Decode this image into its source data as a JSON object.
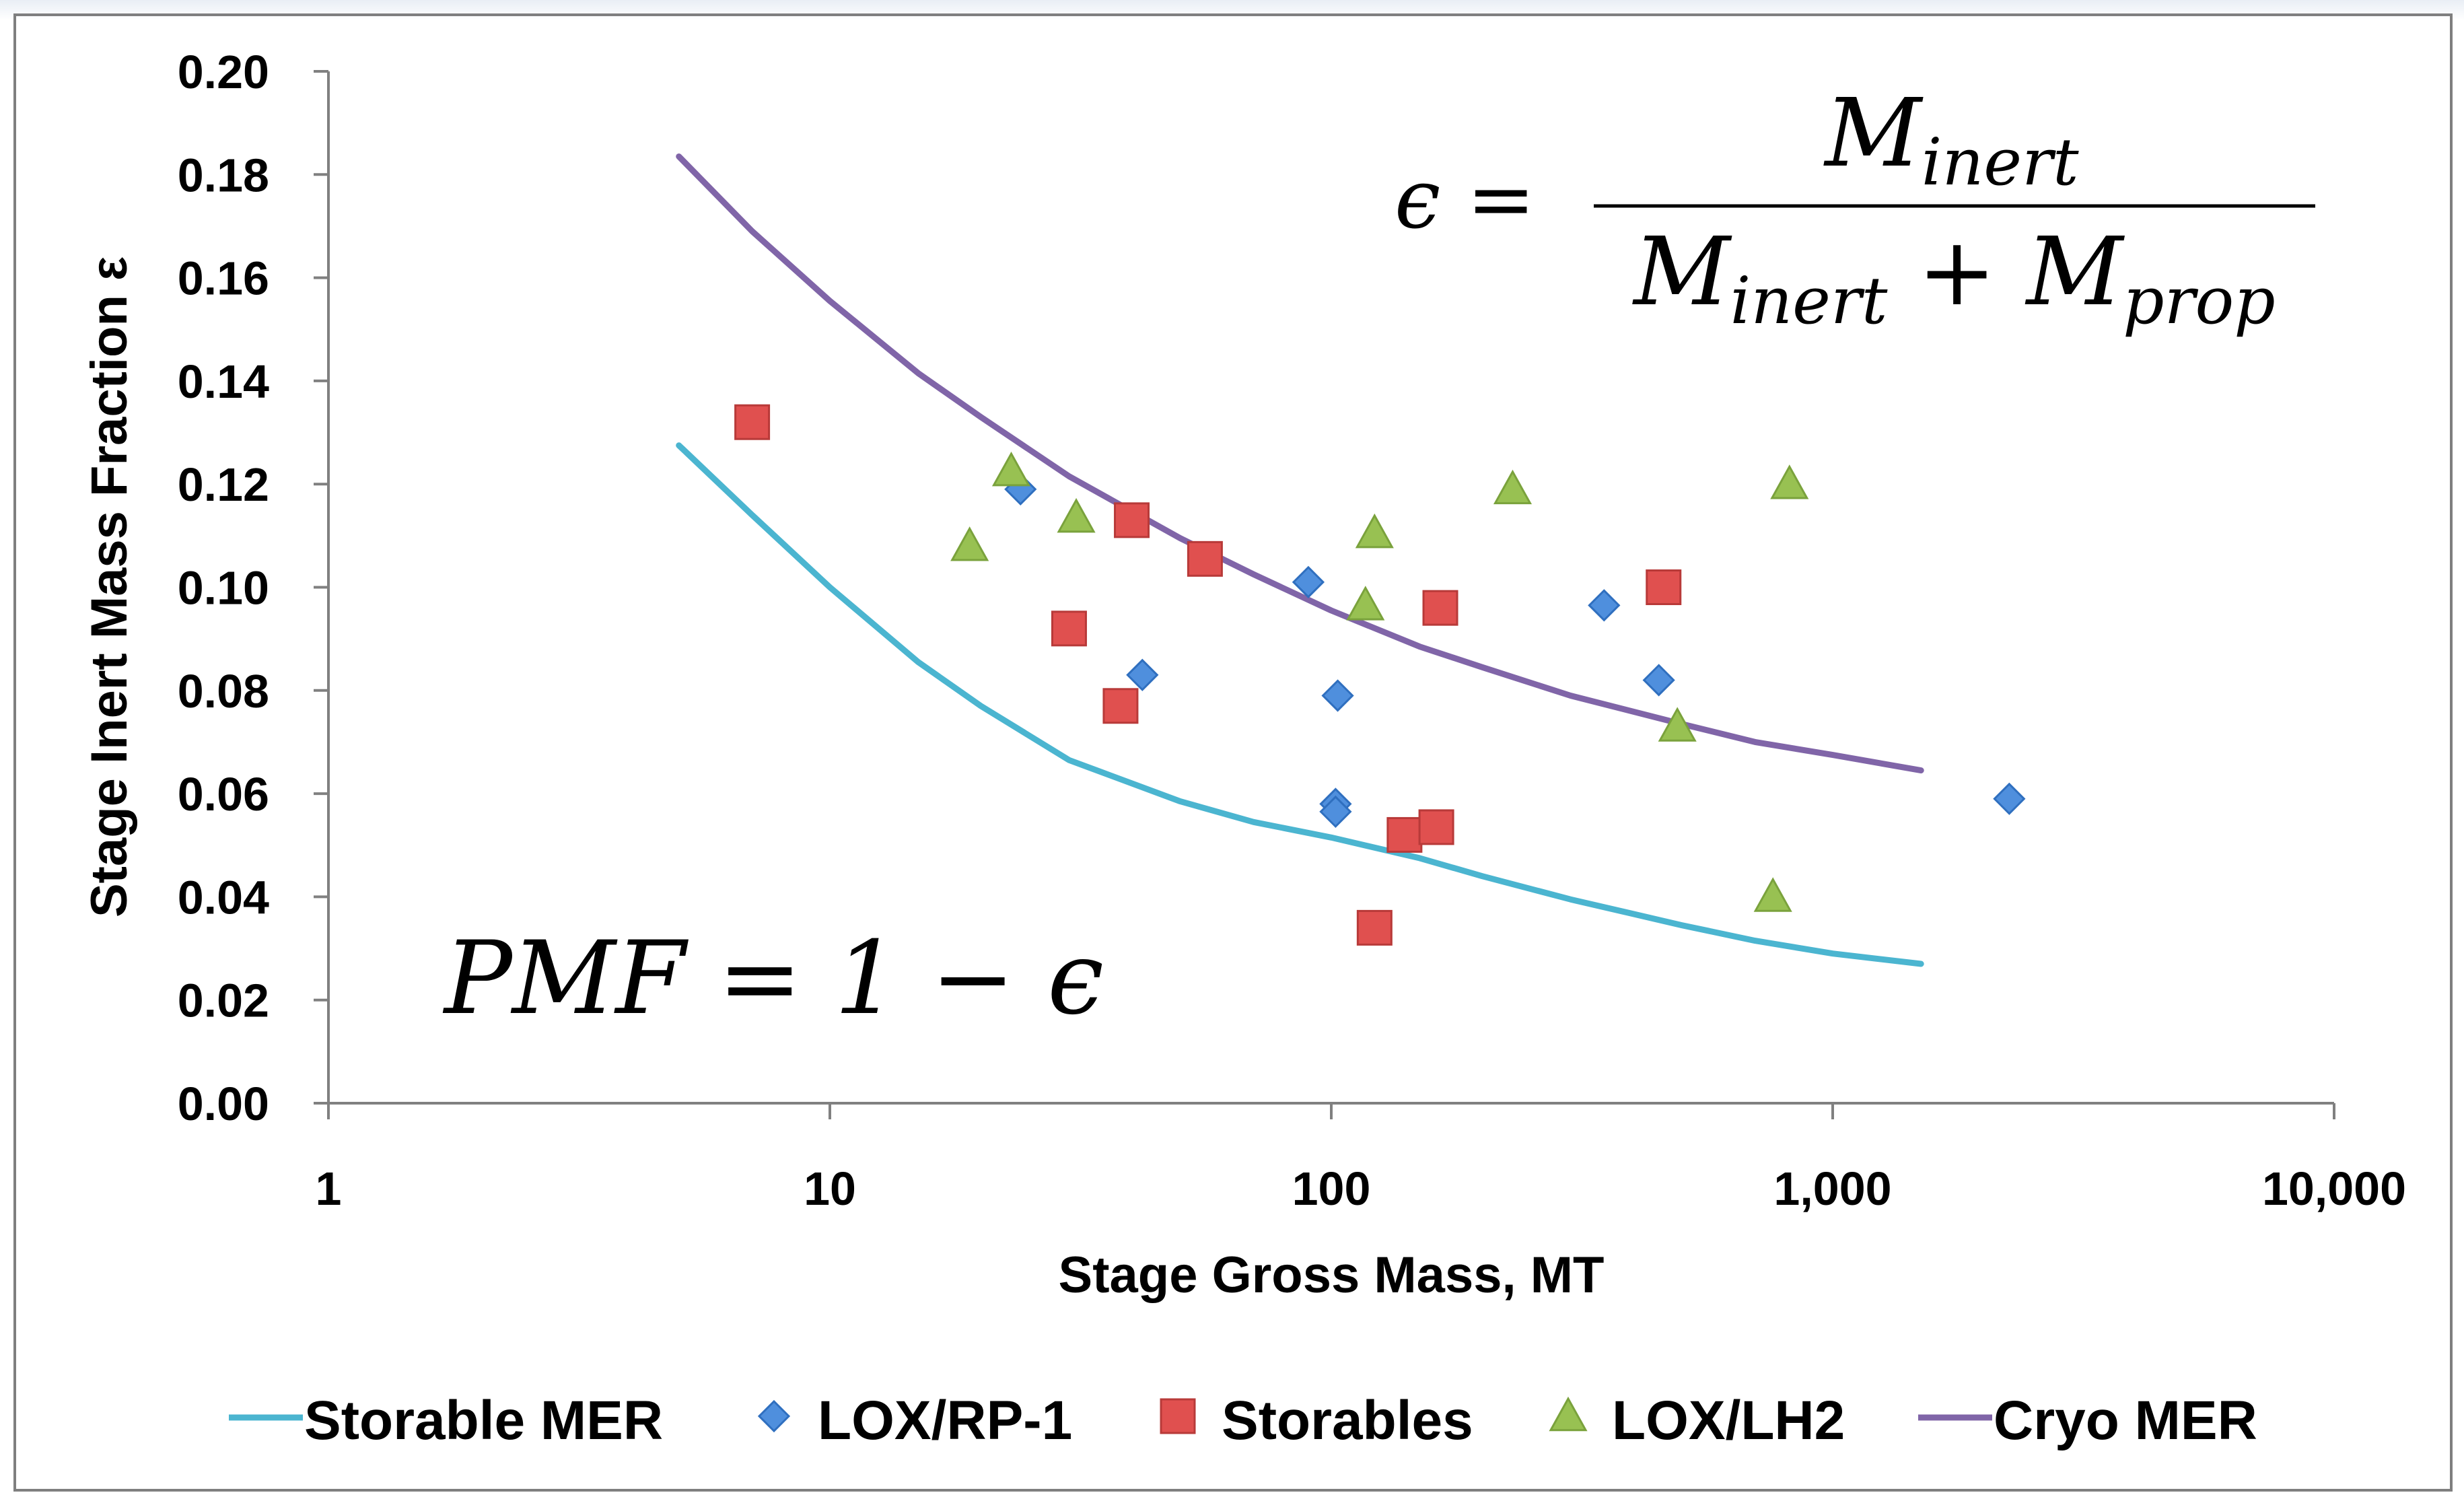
{
  "chart_data": {
    "type": "scatter",
    "title": "",
    "xlabel": "Stage Gross Mass, MT",
    "ylabel": "Stage Inert Mass Fraction ε",
    "xscale": "log",
    "xlim": [
      1,
      10000
    ],
    "ylim": [
      0,
      0.2
    ],
    "x_ticks": [
      1,
      10,
      100,
      1000,
      10000
    ],
    "x_tick_labels": [
      "1",
      "10",
      "100",
      "1,000",
      "10,000"
    ],
    "y_ticks": [
      0,
      0.02,
      0.04,
      0.06,
      0.08,
      0.1,
      0.12,
      0.14,
      0.16,
      0.18,
      0.2
    ],
    "y_tick_labels": [
      "0.00",
      "0.02",
      "0.04",
      "0.06",
      "0.08",
      "0.10",
      "0.12",
      "0.14",
      "0.16",
      "0.18",
      "0.20"
    ],
    "grid": false,
    "legend_position": "bottom",
    "colors": {
      "storable_mer": "#4bb5d0",
      "cryo_mer": "#8065a8",
      "lox_rp1": "#4f8fdd",
      "storables": "#e0504f",
      "lox_lh2": "#98c152"
    },
    "series": [
      {
        "name": "Storable MER",
        "kind": "line",
        "color": "#4bb5d0",
        "x": [
          5,
          7,
          10,
          15,
          20,
          30,
          50,
          70,
          100,
          150,
          200,
          300,
          500,
          700,
          1000,
          1500
        ],
        "y": [
          0.1275,
          0.114,
          0.1,
          0.0855,
          0.077,
          0.0665,
          0.0585,
          0.0545,
          0.0515,
          0.0475,
          0.044,
          0.0395,
          0.0345,
          0.0315,
          0.029,
          0.027
        ]
      },
      {
        "name": "LOX/RP-1",
        "kind": "scatter",
        "marker": "diamond",
        "color": "#4f8fdd",
        "x": [
          24,
          42,
          90,
          103,
          102,
          102,
          350,
          450,
          2250
        ],
        "y": [
          0.119,
          0.083,
          0.101,
          0.079,
          0.058,
          0.0565,
          0.0965,
          0.082,
          0.059
        ]
      },
      {
        "name": "Storables",
        "kind": "scatter",
        "marker": "square",
        "color": "#e0504f",
        "x": [
          7,
          30,
          38,
          40,
          56,
          122,
          140,
          162,
          165,
          460
        ],
        "y": [
          0.132,
          0.092,
          0.077,
          0.113,
          0.1055,
          0.034,
          0.052,
          0.0535,
          0.096,
          0.1
        ]
      },
      {
        "name": "LOX/LH2",
        "kind": "scatter",
        "marker": "triangle",
        "color": "#98c152",
        "x": [
          19,
          23,
          31,
          117,
          122,
          230,
          490,
          760,
          820
        ],
        "y": [
          0.108,
          0.1225,
          0.1135,
          0.0965,
          0.1105,
          0.119,
          0.073,
          0.04,
          0.12
        ]
      },
      {
        "name": "Cryo MER",
        "kind": "line",
        "color": "#8065a8",
        "x": [
          5,
          7,
          10,
          15,
          20,
          30,
          50,
          70,
          100,
          150,
          200,
          300,
          500,
          700,
          1000,
          1500
        ],
        "y": [
          0.1835,
          0.169,
          0.1555,
          0.1415,
          0.133,
          0.1215,
          0.1095,
          0.1025,
          0.0955,
          0.0885,
          0.0845,
          0.079,
          0.0735,
          0.07,
          0.0675,
          0.0645
        ]
      }
    ],
    "annotations": [
      {
        "id": "eps_formula",
        "lhs": "ϵ =",
        "numerator": "M_inert",
        "denominator": "M_inert + M_prop"
      },
      {
        "id": "pmf_formula",
        "text": "PMF = 1 − ϵ"
      }
    ]
  }
}
